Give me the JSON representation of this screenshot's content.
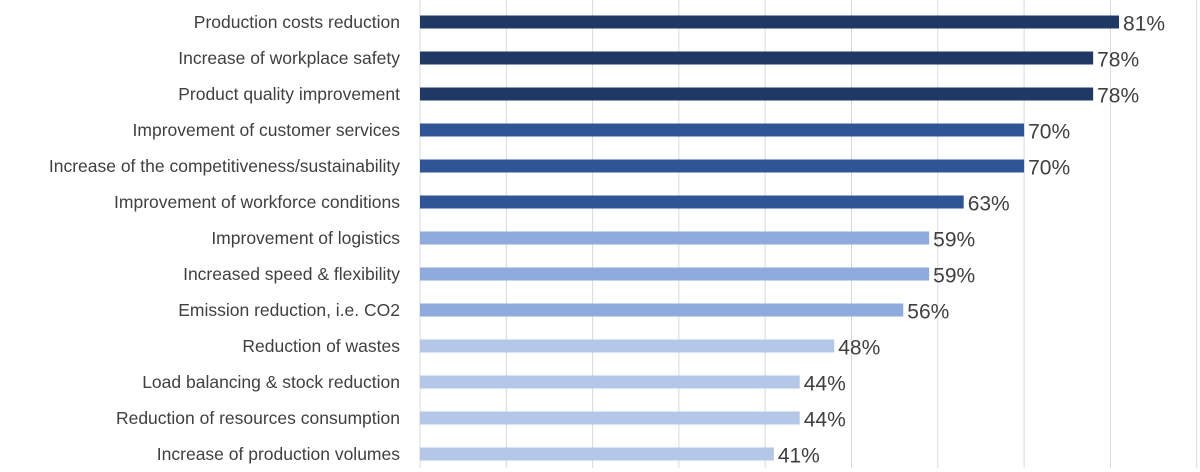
{
  "chart_data": {
    "type": "bar",
    "orientation": "horizontal",
    "title": "",
    "xlabel": "",
    "ylabel": "",
    "xlim": [
      0,
      100
    ],
    "grid": true,
    "legend": "none",
    "categories": [
      "Production costs reduction",
      "Increase of workplace safety",
      "Product quality improvement",
      "Improvement of customer services",
      "Increase of the competitiveness/sustainability",
      "Improvement of workforce conditions",
      "Improvement of logistics",
      "Increased speed & flexibility",
      "Emission reduction, i.e. CO2",
      "Reduction of wastes",
      "Load balancing & stock reduction",
      "Reduction of resources consumption",
      "Increase of production volumes"
    ],
    "values": [
      81,
      78,
      78,
      70,
      70,
      63,
      59,
      59,
      56,
      48,
      44,
      44,
      41
    ],
    "data_labels": [
      "81%",
      "78%",
      "78%",
      "70%",
      "70%",
      "63%",
      "59%",
      "59%",
      "56%",
      "48%",
      "44%",
      "44%",
      "41%"
    ],
    "bar_colors": [
      "#203864",
      "#203864",
      "#203864",
      "#2f5597",
      "#2f5597",
      "#2f5597",
      "#8faadc",
      "#8faadc",
      "#8faadc",
      "#b4c7e7",
      "#b4c7e7",
      "#b4c7e7",
      "#b4c7e7"
    ]
  }
}
